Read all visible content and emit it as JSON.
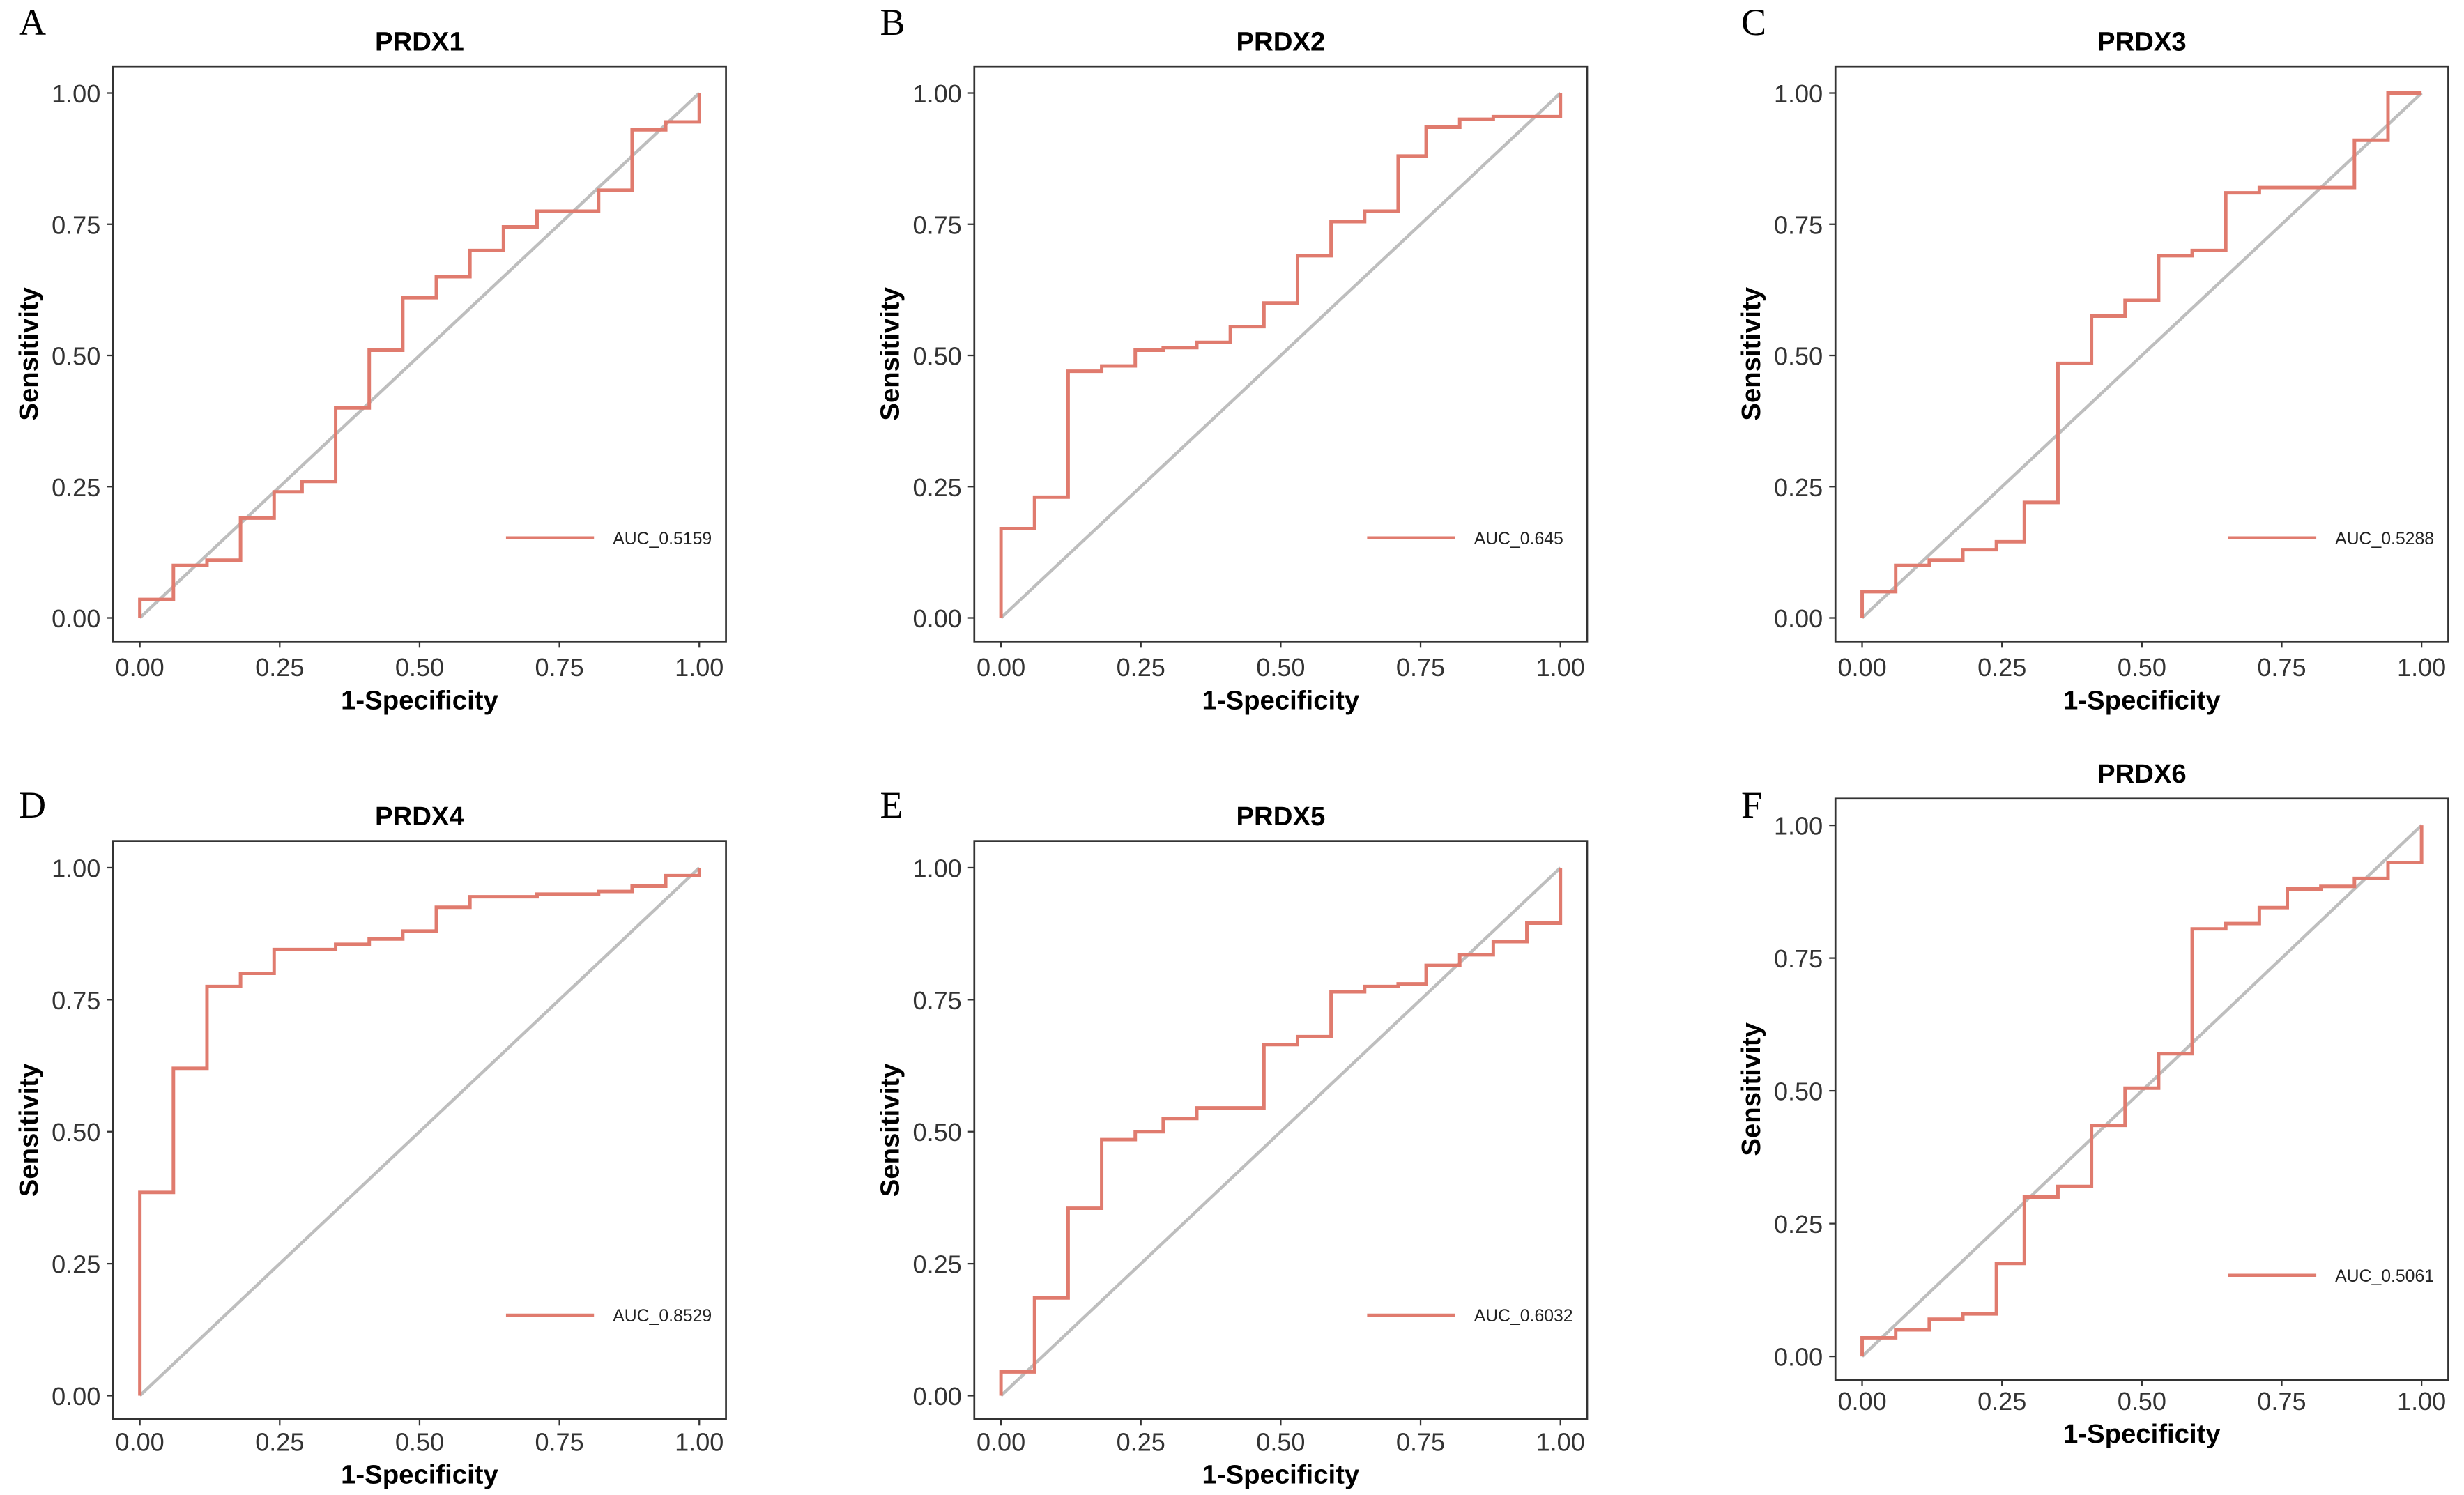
{
  "colors": {
    "roc": "#E07B6E",
    "diagonal": "#BEBEBE",
    "frame": "#333333"
  },
  "chart_data": [
    {
      "type": "line",
      "panel": "A",
      "title": "PRDX1",
      "xlabel": "1-Specificity",
      "ylabel": "Sensitivity",
      "xlim": [
        0,
        1
      ],
      "ylim": [
        0,
        1
      ],
      "xticks": [
        "0.00",
        "0.25",
        "0.50",
        "0.75",
        "1.00"
      ],
      "yticks": [
        "0.00",
        "0.25",
        "0.50",
        "0.75",
        "1.00"
      ],
      "legend": {
        "label": "AUC_0.5159",
        "position": "bottom-right"
      },
      "series": [
        {
          "name": "AUC_0.5159",
          "points": [
            [
              0,
              0
            ],
            [
              0,
              0.035
            ],
            [
              0.06,
              0.035
            ],
            [
              0.06,
              0.1
            ],
            [
              0.12,
              0.1
            ],
            [
              0.12,
              0.11
            ],
            [
              0.18,
              0.11
            ],
            [
              0.18,
              0.19
            ],
            [
              0.24,
              0.19
            ],
            [
              0.24,
              0.24
            ],
            [
              0.29,
              0.24
            ],
            [
              0.29,
              0.26
            ],
            [
              0.35,
              0.26
            ],
            [
              0.35,
              0.4
            ],
            [
              0.41,
              0.4
            ],
            [
              0.41,
              0.51
            ],
            [
              0.47,
              0.51
            ],
            [
              0.47,
              0.61
            ],
            [
              0.53,
              0.61
            ],
            [
              0.53,
              0.65
            ],
            [
              0.59,
              0.65
            ],
            [
              0.59,
              0.7
            ],
            [
              0.65,
              0.7
            ],
            [
              0.65,
              0.745
            ],
            [
              0.71,
              0.745
            ],
            [
              0.71,
              0.775
            ],
            [
              0.82,
              0.775
            ],
            [
              0.82,
              0.815
            ],
            [
              0.88,
              0.815
            ],
            [
              0.88,
              0.93
            ],
            [
              0.94,
              0.93
            ],
            [
              0.94,
              0.945
            ],
            [
              1,
              0.945
            ],
            [
              1,
              1
            ]
          ]
        }
      ]
    },
    {
      "type": "line",
      "panel": "B",
      "title": "PRDX2",
      "xlabel": "1-Specificity",
      "ylabel": "Sensitivity",
      "xlim": [
        0,
        1
      ],
      "ylim": [
        0,
        1
      ],
      "xticks": [
        "0.00",
        "0.25",
        "0.50",
        "0.75",
        "1.00"
      ],
      "yticks": [
        "0.00",
        "0.25",
        "0.50",
        "0.75",
        "1.00"
      ],
      "legend": {
        "label": "AUC_0.645",
        "position": "bottom-right"
      },
      "series": [
        {
          "name": "AUC_0.645",
          "points": [
            [
              0,
              0
            ],
            [
              0,
              0.17
            ],
            [
              0.06,
              0.17
            ],
            [
              0.06,
              0.23
            ],
            [
              0.12,
              0.23
            ],
            [
              0.12,
              0.47
            ],
            [
              0.18,
              0.47
            ],
            [
              0.18,
              0.48
            ],
            [
              0.24,
              0.48
            ],
            [
              0.24,
              0.51
            ],
            [
              0.29,
              0.51
            ],
            [
              0.29,
              0.515
            ],
            [
              0.35,
              0.515
            ],
            [
              0.35,
              0.525
            ],
            [
              0.41,
              0.525
            ],
            [
              0.41,
              0.555
            ],
            [
              0.47,
              0.555
            ],
            [
              0.47,
              0.6
            ],
            [
              0.53,
              0.6
            ],
            [
              0.53,
              0.69
            ],
            [
              0.59,
              0.69
            ],
            [
              0.59,
              0.755
            ],
            [
              0.65,
              0.755
            ],
            [
              0.65,
              0.775
            ],
            [
              0.71,
              0.775
            ],
            [
              0.71,
              0.88
            ],
            [
              0.76,
              0.88
            ],
            [
              0.76,
              0.935
            ],
            [
              0.82,
              0.935
            ],
            [
              0.82,
              0.95
            ],
            [
              0.88,
              0.95
            ],
            [
              0.88,
              0.955
            ],
            [
              1,
              0.955
            ],
            [
              1,
              1
            ]
          ]
        }
      ]
    },
    {
      "type": "line",
      "panel": "C",
      "title": "PRDX3",
      "xlabel": "1-Specificity",
      "ylabel": "Sensitivity",
      "xlim": [
        0,
        1
      ],
      "ylim": [
        0,
        1
      ],
      "xticks": [
        "0.00",
        "0.25",
        "0.50",
        "0.75",
        "1.00"
      ],
      "yticks": [
        "0.00",
        "0.25",
        "0.50",
        "0.75",
        "1.00"
      ],
      "legend": {
        "label": "AUC_0.5288",
        "position": "bottom-right"
      },
      "series": [
        {
          "name": "AUC_0.5288",
          "points": [
            [
              0,
              0
            ],
            [
              0,
              0.05
            ],
            [
              0.06,
              0.05
            ],
            [
              0.06,
              0.1
            ],
            [
              0.12,
              0.1
            ],
            [
              0.12,
              0.11
            ],
            [
              0.18,
              0.11
            ],
            [
              0.18,
              0.13
            ],
            [
              0.24,
              0.13
            ],
            [
              0.24,
              0.145
            ],
            [
              0.29,
              0.145
            ],
            [
              0.29,
              0.22
            ],
            [
              0.35,
              0.22
            ],
            [
              0.35,
              0.485
            ],
            [
              0.41,
              0.485
            ],
            [
              0.41,
              0.575
            ],
            [
              0.47,
              0.575
            ],
            [
              0.47,
              0.605
            ],
            [
              0.53,
              0.605
            ],
            [
              0.53,
              0.69
            ],
            [
              0.59,
              0.69
            ],
            [
              0.59,
              0.7
            ],
            [
              0.65,
              0.7
            ],
            [
              0.65,
              0.81
            ],
            [
              0.71,
              0.81
            ],
            [
              0.71,
              0.82
            ],
            [
              0.88,
              0.82
            ],
            [
              0.88,
              0.91
            ],
            [
              0.94,
              0.91
            ],
            [
              0.94,
              1
            ],
            [
              1,
              1
            ]
          ]
        }
      ]
    },
    {
      "type": "line",
      "panel": "D",
      "title": "PRDX4",
      "xlabel": "1-Specificity",
      "ylabel": "Sensitivity",
      "xlim": [
        0,
        1
      ],
      "ylim": [
        0,
        1
      ],
      "xticks": [
        "0.00",
        "0.25",
        "0.50",
        "0.75",
        "1.00"
      ],
      "yticks": [
        "0.00",
        "0.25",
        "0.50",
        "0.75",
        "1.00"
      ],
      "legend": {
        "label": "AUC_0.8529",
        "position": "bottom-right"
      },
      "series": [
        {
          "name": "AUC_0.8529",
          "points": [
            [
              0,
              0
            ],
            [
              0,
              0.385
            ],
            [
              0.06,
              0.385
            ],
            [
              0.06,
              0.62
            ],
            [
              0.12,
              0.62
            ],
            [
              0.12,
              0.775
            ],
            [
              0.18,
              0.775
            ],
            [
              0.18,
              0.8
            ],
            [
              0.24,
              0.8
            ],
            [
              0.24,
              0.845
            ],
            [
              0.35,
              0.845
            ],
            [
              0.35,
              0.855
            ],
            [
              0.41,
              0.855
            ],
            [
              0.41,
              0.865
            ],
            [
              0.47,
              0.865
            ],
            [
              0.47,
              0.88
            ],
            [
              0.53,
              0.88
            ],
            [
              0.53,
              0.925
            ],
            [
              0.59,
              0.925
            ],
            [
              0.59,
              0.945
            ],
            [
              0.71,
              0.945
            ],
            [
              0.71,
              0.95
            ],
            [
              0.82,
              0.95
            ],
            [
              0.82,
              0.955
            ],
            [
              0.88,
              0.955
            ],
            [
              0.88,
              0.965
            ],
            [
              0.94,
              0.965
            ],
            [
              0.94,
              0.985
            ],
            [
              1,
              0.985
            ],
            [
              1,
              1
            ]
          ]
        }
      ]
    },
    {
      "type": "line",
      "panel": "E",
      "title": "PRDX5",
      "xlabel": "1-Specificity",
      "ylabel": "Sensitivity",
      "xlim": [
        0,
        1
      ],
      "ylim": [
        0,
        1
      ],
      "xticks": [
        "0.00",
        "0.25",
        "0.50",
        "0.75",
        "1.00"
      ],
      "yticks": [
        "0.00",
        "0.25",
        "0.50",
        "0.75",
        "1.00"
      ],
      "legend": {
        "label": "AUC_0.6032",
        "position": "bottom-right"
      },
      "series": [
        {
          "name": "AUC_0.6032",
          "points": [
            [
              0,
              0
            ],
            [
              0,
              0.045
            ],
            [
              0.06,
              0.045
            ],
            [
              0.06,
              0.185
            ],
            [
              0.12,
              0.185
            ],
            [
              0.12,
              0.355
            ],
            [
              0.18,
              0.355
            ],
            [
              0.18,
              0.485
            ],
            [
              0.24,
              0.485
            ],
            [
              0.24,
              0.5
            ],
            [
              0.29,
              0.5
            ],
            [
              0.29,
              0.525
            ],
            [
              0.35,
              0.525
            ],
            [
              0.35,
              0.545
            ],
            [
              0.47,
              0.545
            ],
            [
              0.47,
              0.665
            ],
            [
              0.53,
              0.665
            ],
            [
              0.53,
              0.68
            ],
            [
              0.59,
              0.68
            ],
            [
              0.59,
              0.765
            ],
            [
              0.65,
              0.765
            ],
            [
              0.65,
              0.775
            ],
            [
              0.71,
              0.775
            ],
            [
              0.71,
              0.78
            ],
            [
              0.76,
              0.78
            ],
            [
              0.76,
              0.815
            ],
            [
              0.82,
              0.815
            ],
            [
              0.82,
              0.835
            ],
            [
              0.88,
              0.835
            ],
            [
              0.88,
              0.86
            ],
            [
              0.94,
              0.86
            ],
            [
              0.94,
              0.895
            ],
            [
              1,
              0.895
            ],
            [
              1,
              1
            ]
          ]
        }
      ]
    },
    {
      "type": "line",
      "panel": "F",
      "title": "PRDX6",
      "xlabel": "1-Specificity",
      "ylabel": "Sensitivity",
      "xlim": [
        0,
        1
      ],
      "ylim": [
        0,
        1
      ],
      "xticks": [
        "0.00",
        "0.25",
        "0.50",
        "0.75",
        "1.00"
      ],
      "yticks": [
        "0.00",
        "0.25",
        "0.50",
        "0.75",
        "1.00"
      ],
      "legend": {
        "label": "AUC_0.5061",
        "position": "bottom-right"
      },
      "series": [
        {
          "name": "AUC_0.5061",
          "points": [
            [
              0,
              0
            ],
            [
              0,
              0.035
            ],
            [
              0.06,
              0.035
            ],
            [
              0.06,
              0.05
            ],
            [
              0.12,
              0.05
            ],
            [
              0.12,
              0.07
            ],
            [
              0.18,
              0.07
            ],
            [
              0.18,
              0.08
            ],
            [
              0.24,
              0.08
            ],
            [
              0.24,
              0.175
            ],
            [
              0.29,
              0.175
            ],
            [
              0.29,
              0.3
            ],
            [
              0.35,
              0.3
            ],
            [
              0.35,
              0.32
            ],
            [
              0.41,
              0.32
            ],
            [
              0.41,
              0.435
            ],
            [
              0.47,
              0.435
            ],
            [
              0.47,
              0.505
            ],
            [
              0.53,
              0.505
            ],
            [
              0.53,
              0.57
            ],
            [
              0.59,
              0.57
            ],
            [
              0.59,
              0.805
            ],
            [
              0.65,
              0.805
            ],
            [
              0.65,
              0.815
            ],
            [
              0.71,
              0.815
            ],
            [
              0.71,
              0.845
            ],
            [
              0.76,
              0.845
            ],
            [
              0.76,
              0.88
            ],
            [
              0.82,
              0.88
            ],
            [
              0.82,
              0.885
            ],
            [
              0.88,
              0.885
            ],
            [
              0.88,
              0.9
            ],
            [
              0.94,
              0.9
            ],
            [
              0.94,
              0.93
            ],
            [
              1,
              0.93
            ],
            [
              1,
              1
            ]
          ]
        }
      ]
    }
  ]
}
